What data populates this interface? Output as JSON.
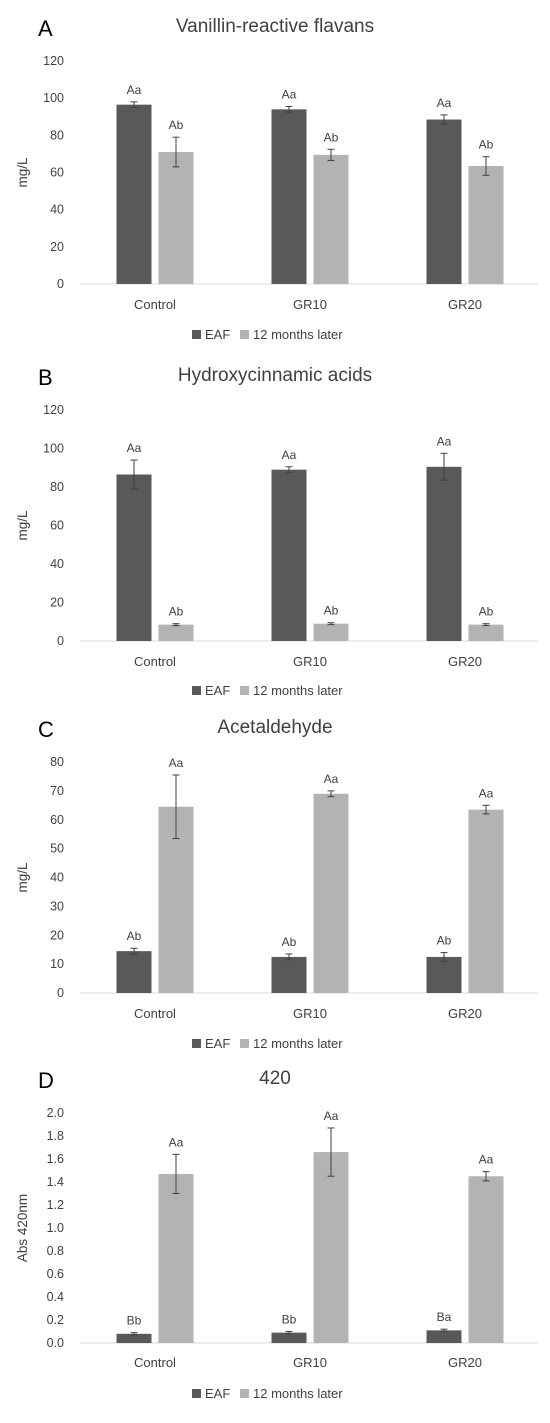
{
  "chart_data": [
    {
      "type": "bar",
      "panel": "A",
      "title": "Vanillin-reactive flavans",
      "ylabel": "mg/L",
      "ylim": [
        0,
        120
      ],
      "ytick_step": 20,
      "ytick_decimals": 0,
      "categories": [
        "Control",
        "GR10",
        "GR20"
      ],
      "series": [
        {
          "name": "EAF",
          "color": "#595959",
          "values": [
            96.5,
            94,
            88.5
          ],
          "errors": [
            1.5,
            1.5,
            2.5
          ],
          "labels": [
            "Aa",
            "Aa",
            "Aa"
          ]
        },
        {
          "name": "12 months later",
          "color": "#b3b3b3",
          "values": [
            71,
            69.5,
            63.5
          ],
          "errors": [
            8,
            3,
            5
          ],
          "labels": [
            "Ab",
            "Ab",
            "Ab"
          ]
        }
      ],
      "grid": false,
      "legend": "bottom"
    },
    {
      "type": "bar",
      "panel": "B",
      "title": "Hydroxycinnamic acids",
      "ylabel": "mg/L",
      "ylim": [
        0,
        120
      ],
      "ytick_step": 20,
      "ytick_decimals": 0,
      "categories": [
        "Control",
        "GR10",
        "GR20"
      ],
      "series": [
        {
          "name": "EAF",
          "color": "#595959",
          "values": [
            86.5,
            89,
            90.5
          ],
          "errors": [
            7.5,
            1.5,
            7
          ],
          "labels": [
            "Aa",
            "Aa",
            "Aa"
          ]
        },
        {
          "name": "12 months later",
          "color": "#b3b3b3",
          "values": [
            8.5,
            9,
            8.5
          ],
          "errors": [
            0.5,
            0.5,
            0.5
          ],
          "labels": [
            "Ab",
            "Ab",
            "Ab"
          ]
        }
      ],
      "grid": false,
      "legend": "bottom"
    },
    {
      "type": "bar",
      "panel": "C",
      "title": "Acetaldehyde",
      "ylabel": "mg/L",
      "ylim": [
        0,
        80
      ],
      "ytick_step": 10,
      "ytick_decimals": 0,
      "categories": [
        "Control",
        "GR10",
        "GR20"
      ],
      "series": [
        {
          "name": "EAF",
          "color": "#595959",
          "values": [
            14.5,
            12.5,
            12.5
          ],
          "errors": [
            1,
            1,
            1.5
          ],
          "labels": [
            "Ab",
            "Ab",
            "Ab"
          ]
        },
        {
          "name": "12 months later",
          "color": "#b3b3b3",
          "values": [
            64.5,
            69,
            63.5
          ],
          "errors": [
            11,
            1,
            1.5
          ],
          "labels": [
            "Aa",
            "Aa",
            "Aa"
          ]
        }
      ],
      "grid": false,
      "legend": "bottom"
    },
    {
      "type": "bar",
      "panel": "D",
      "title": "420",
      "ylabel": "Abs 420nm",
      "ylim": [
        0,
        2.0
      ],
      "ytick_step": 0.2,
      "ytick_decimals": 1,
      "categories": [
        "Control",
        "GR10",
        "GR20"
      ],
      "series": [
        {
          "name": "EAF",
          "color": "#595959",
          "values": [
            0.08,
            0.09,
            0.11
          ],
          "errors": [
            0.01,
            0.01,
            0.01
          ],
          "labels": [
            "Bb",
            "Bb",
            "Ba"
          ]
        },
        {
          "name": "12 months later",
          "color": "#b3b3b3",
          "values": [
            1.47,
            1.66,
            1.45
          ],
          "errors": [
            0.17,
            0.21,
            0.04
          ],
          "labels": [
            "Aa",
            "Aa",
            "Aa"
          ]
        }
      ],
      "grid": false,
      "legend": "bottom"
    }
  ]
}
